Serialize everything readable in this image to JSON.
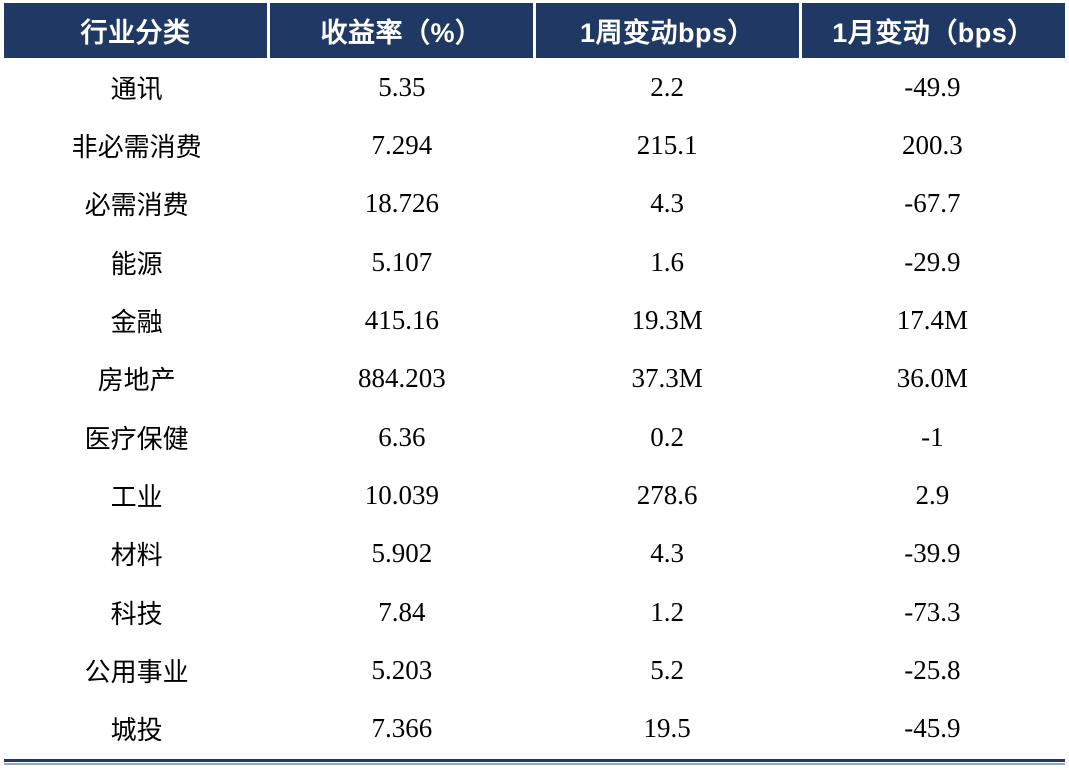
{
  "colors": {
    "header_bg": "#1f3864",
    "header_text": "#ffffff",
    "body_text": "#000000",
    "border_dark": "#1f3864",
    "border_light": "#95a9c4"
  },
  "table": {
    "headers": [
      "行业分类",
      "收益率（%）",
      "1周变动bps）",
      "1月变动（bps）"
    ],
    "rows": [
      [
        "通讯",
        "5.35",
        "2.2",
        "-49.9"
      ],
      [
        "非必需消费",
        "7.294",
        "215.1",
        "200.3"
      ],
      [
        "必需消费",
        "18.726",
        "4.3",
        "-67.7"
      ],
      [
        "能源",
        "5.107",
        "1.6",
        "-29.9"
      ],
      [
        "金融",
        "415.16",
        "19.3M",
        "17.4M"
      ],
      [
        "房地产",
        "884.203",
        "37.3M",
        "36.0M"
      ],
      [
        "医疗保健",
        "6.36",
        "0.2",
        "-1"
      ],
      [
        "工业",
        "10.039",
        "278.6",
        "2.9"
      ],
      [
        "材料",
        "5.902",
        "4.3",
        "-39.9"
      ],
      [
        "科技",
        "7.84",
        "1.2",
        "-73.3"
      ],
      [
        "公用事业",
        "5.203",
        "5.2",
        "-25.8"
      ],
      [
        "城投",
        "7.366",
        "19.5",
        "-45.9"
      ]
    ]
  },
  "chart_data": {
    "type": "table",
    "title": "",
    "columns": [
      "行业分类",
      "收益率（%）",
      "1周变动bps）",
      "1月变动（bps）"
    ],
    "rows": [
      {
        "industry": "通讯",
        "yield_pct": 5.35,
        "week_change_bps": "2.2",
        "month_change_bps": "-49.9"
      },
      {
        "industry": "非必需消费",
        "yield_pct": 7.294,
        "week_change_bps": "215.1",
        "month_change_bps": "200.3"
      },
      {
        "industry": "必需消费",
        "yield_pct": 18.726,
        "week_change_bps": "4.3",
        "month_change_bps": "-67.7"
      },
      {
        "industry": "能源",
        "yield_pct": 5.107,
        "week_change_bps": "1.6",
        "month_change_bps": "-29.9"
      },
      {
        "industry": "金融",
        "yield_pct": 415.16,
        "week_change_bps": "19.3M",
        "month_change_bps": "17.4M"
      },
      {
        "industry": "房地产",
        "yield_pct": 884.203,
        "week_change_bps": "37.3M",
        "month_change_bps": "36.0M"
      },
      {
        "industry": "医疗保健",
        "yield_pct": 6.36,
        "week_change_bps": "0.2",
        "month_change_bps": "-1"
      },
      {
        "industry": "工业",
        "yield_pct": 10.039,
        "week_change_bps": "278.6",
        "month_change_bps": "2.9"
      },
      {
        "industry": "材料",
        "yield_pct": 5.902,
        "week_change_bps": "4.3",
        "month_change_bps": "-39.9"
      },
      {
        "industry": "科技",
        "yield_pct": 7.84,
        "week_change_bps": "1.2",
        "month_change_bps": "-73.3"
      },
      {
        "industry": "公用事业",
        "yield_pct": 5.203,
        "week_change_bps": "5.2",
        "month_change_bps": "-25.8"
      },
      {
        "industry": "城投",
        "yield_pct": 7.366,
        "week_change_bps": "19.5",
        "month_change_bps": "-45.9"
      }
    ],
    "layout": {
      "grid": "none",
      "header_style": "dark-navy-filled",
      "bottom_border": "thick-thin double"
    }
  }
}
